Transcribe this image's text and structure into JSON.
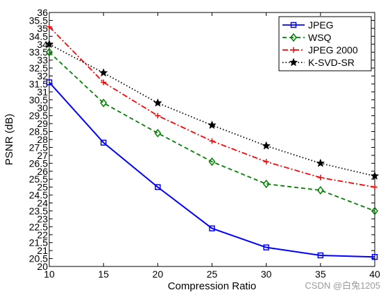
{
  "chart_data": {
    "type": "line",
    "title": "",
    "xlabel": "Compression Ratio",
    "ylabel": "PSNR (dB)",
    "x": [
      10,
      15,
      20,
      25,
      30,
      35,
      40
    ],
    "xlim": [
      10,
      40
    ],
    "ylim": [
      20,
      36
    ],
    "xticks": [
      "10",
      "15",
      "20",
      "25",
      "30",
      "35",
      "40"
    ],
    "yticks": [
      "20",
      "20.5",
      "21",
      "21.5",
      "22",
      "22.5",
      "23",
      "23.5",
      "24",
      "24.5",
      "25",
      "25.5",
      "26",
      "26.5",
      "27",
      "27.5",
      "28",
      "28.5",
      "29",
      "29.5",
      "30",
      "30.5",
      "31",
      "31.5",
      "32",
      "32.5",
      "33",
      "33.5",
      "34",
      "34.5",
      "35",
      "35.5",
      "36"
    ],
    "grid": false,
    "legend_position": "top-right",
    "series": [
      {
        "name": "JPEG",
        "color": "#0000ff",
        "line_style": "solid",
        "marker": "square",
        "values": [
          31.6,
          27.8,
          25.0,
          22.4,
          21.2,
          20.7,
          20.6
        ]
      },
      {
        "name": "WSQ",
        "color": "#008000",
        "line_style": "dashed",
        "marker": "diamond",
        "values": [
          33.5,
          30.3,
          28.4,
          26.6,
          25.2,
          24.8,
          23.5
        ]
      },
      {
        "name": "JPEG 2000",
        "color": "#ff0000",
        "line_style": "dash-dot",
        "marker": "plus",
        "values": [
          35.1,
          31.6,
          29.5,
          27.9,
          26.6,
          25.6,
          25.0
        ]
      },
      {
        "name": "K-SVD-SR",
        "color": "#000000",
        "line_style": "dotted",
        "marker": "star",
        "values": [
          34.0,
          32.2,
          30.3,
          28.9,
          27.6,
          26.5,
          25.7
        ]
      }
    ]
  },
  "watermark": "CSDN @白兔1205"
}
